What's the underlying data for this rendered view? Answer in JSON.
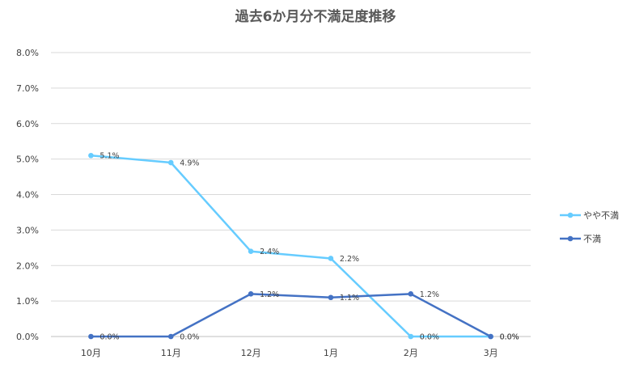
{
  "chart_data": {
    "type": "line",
    "title": "過去6か月分不満足度推移",
    "categories": [
      "10月",
      "11月",
      "12月",
      "1月",
      "2月",
      "3月"
    ],
    "ylim": [
      0,
      8
    ],
    "ytick_labels": [
      "0.0%",
      "1.0%",
      "2.0%",
      "3.0%",
      "4.0%",
      "5.0%",
      "6.0%",
      "7.0%",
      "8.0%"
    ],
    "grid": true,
    "legend_position": "right",
    "series": [
      {
        "name": "やや不満",
        "color": "#66ccff",
        "values": [
          5.1,
          4.9,
          2.4,
          2.2,
          0.0,
          0.0
        ],
        "labels": [
          "5.1%",
          "4.9%",
          "2.4%",
          "2.2%",
          "0.0%",
          "0.0%"
        ]
      },
      {
        "name": "不満",
        "color": "#4472c4",
        "values": [
          0.0,
          0.0,
          1.2,
          1.1,
          1.2,
          0.0
        ],
        "labels": [
          "0.0%",
          "0.0%",
          "1.2%",
          "1.1%",
          "1.2%",
          "0.0%"
        ]
      }
    ]
  }
}
